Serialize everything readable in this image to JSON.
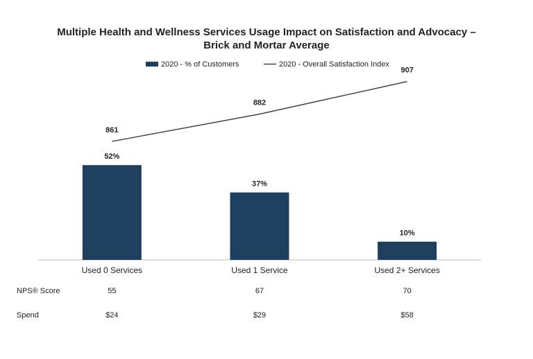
{
  "chart_data": {
    "type": "bar-line",
    "title": [
      "Multiple Health and Wellness Services Usage Impact on Satisfaction and Advocacy –",
      "Brick and Mortar Average"
    ],
    "categories": [
      "Used 0 Services",
      "Used 1 Service",
      "Used 2+ Services"
    ],
    "series": [
      {
        "name": "2020 - % of Customers",
        "type": "bar",
        "color": "#1f3f5f",
        "values": [
          52,
          37,
          10
        ],
        "value_labels": [
          "52%",
          "37%",
          "10%"
        ]
      },
      {
        "name": "2020 - Overall Satisfaction Index",
        "type": "line",
        "axis": "y2",
        "color": "#444444",
        "values": [
          861,
          882,
          907
        ]
      }
    ],
    "ylim": [
      0,
      100
    ],
    "y2lim": [
      770,
      910
    ],
    "rows": [
      {
        "label": "NPS® Score",
        "values": [
          55,
          67,
          70
        ]
      },
      {
        "label": "Spend",
        "values": [
          24,
          29,
          58
        ],
        "value_labels": [
          "$24",
          "$29",
          "$58"
        ]
      }
    ]
  }
}
